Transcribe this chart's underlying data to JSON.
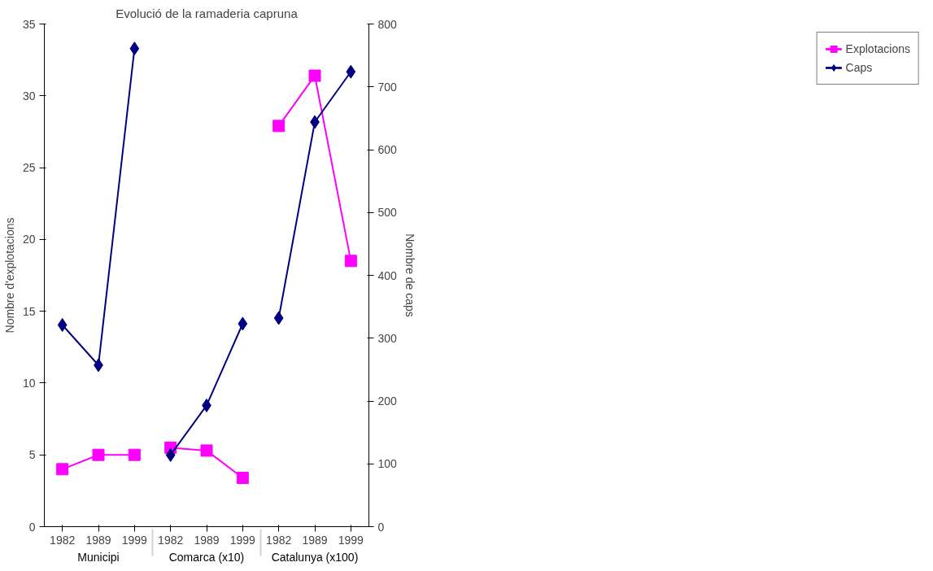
{
  "chart_data": {
    "type": "line",
    "title": "Evolució de la ramaderia capruna",
    "ylabel": "Nombre d'explotacions",
    "y2label": "Nombre de caps",
    "categories": [
      "1982",
      "1989",
      "1999",
      "1982",
      "1989",
      "1999",
      "1982",
      "1989",
      "1999"
    ],
    "annotations": [
      "Municipi",
      "Comarca (x10)",
      "Catalunya (x100)"
    ],
    "series": [
      {
        "name": "Explotacions",
        "color": "#ff00ff",
        "marker": "square",
        "values": [
          4,
          5,
          5,
          5.5,
          5.3,
          3.4,
          27.9,
          31.4,
          18.5
        ]
      },
      {
        "name": "Caps",
        "color": "#000080",
        "marker": "diamond",
        "axis": "y2",
        "values": [
          321,
          257,
          761,
          114,
          193,
          323,
          332,
          644,
          724
        ]
      }
    ],
    "ylim": [
      0,
      35
    ],
    "yticks": [
      0,
      5,
      10,
      15,
      20,
      25,
      30,
      35
    ],
    "y2lim": [
      0,
      800
    ],
    "y2ticks": [
      0,
      100,
      200,
      300,
      400,
      500,
      600,
      700,
      800
    ],
    "grid": false,
    "legend": "right"
  }
}
